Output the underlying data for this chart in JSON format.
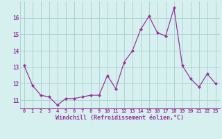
{
  "x": [
    0,
    1,
    2,
    3,
    4,
    5,
    6,
    7,
    8,
    9,
    10,
    11,
    12,
    13,
    14,
    15,
    16,
    17,
    18,
    19,
    20,
    21,
    22,
    23
  ],
  "y": [
    13.1,
    11.9,
    11.3,
    11.2,
    10.7,
    11.1,
    11.1,
    11.2,
    11.3,
    11.3,
    12.5,
    11.7,
    13.3,
    14.0,
    15.3,
    16.1,
    15.1,
    14.9,
    16.6,
    13.1,
    12.3,
    11.8,
    12.6,
    12.0
  ],
  "line_color": "#993399",
  "marker": "D",
  "marker_size": 2,
  "bg_color": "#d6f0f0",
  "grid_color": "#aacece",
  "xlabel": "Windchill (Refroidissement éolien,°C)",
  "xlabel_color": "#993399",
  "tick_color": "#993399",
  "ylim": [
    10.5,
    17.0
  ],
  "yticks": [
    11,
    12,
    13,
    14,
    15,
    16
  ],
  "xticks": [
    0,
    1,
    2,
    3,
    4,
    5,
    6,
    7,
    8,
    9,
    10,
    11,
    12,
    13,
    14,
    15,
    16,
    17,
    18,
    19,
    20,
    21,
    22,
    23
  ]
}
